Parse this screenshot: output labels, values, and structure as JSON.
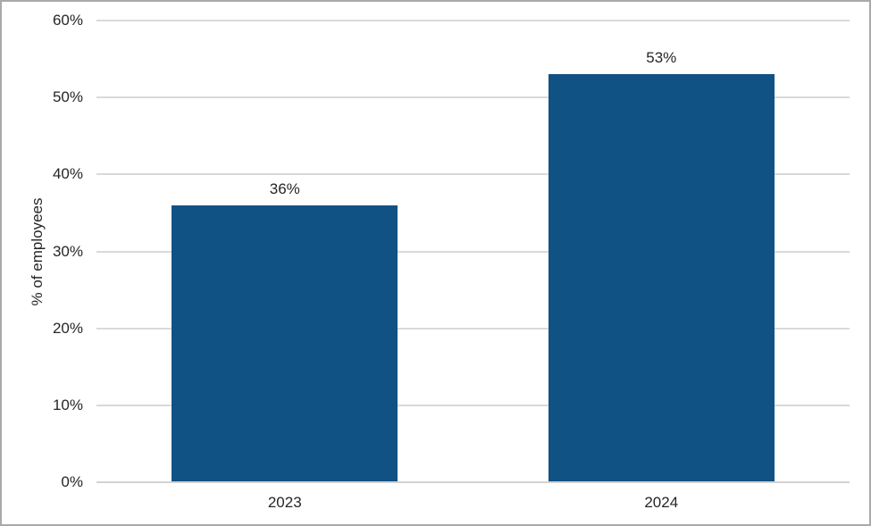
{
  "chart_data": {
    "type": "bar",
    "title": "",
    "categories": [
      "2023",
      "2024"
    ],
    "values": [
      36,
      53
    ],
    "data_labels": [
      "36%",
      "53%"
    ],
    "xlabel": "",
    "ylabel": "% of employees",
    "ylim": [
      0,
      60
    ],
    "ytick_step": 10,
    "ytick_labels": [
      "0%",
      "10%",
      "20%",
      "30%",
      "40%",
      "50%",
      "60%"
    ],
    "grid": "horizontal-only",
    "legend": "none",
    "colors": {
      "bar_fill": "#115284",
      "gridline": "#d9d9d9",
      "axis_line": "#d2d2d2",
      "text": "#262626",
      "frame_border": "#a9a9a9"
    }
  }
}
